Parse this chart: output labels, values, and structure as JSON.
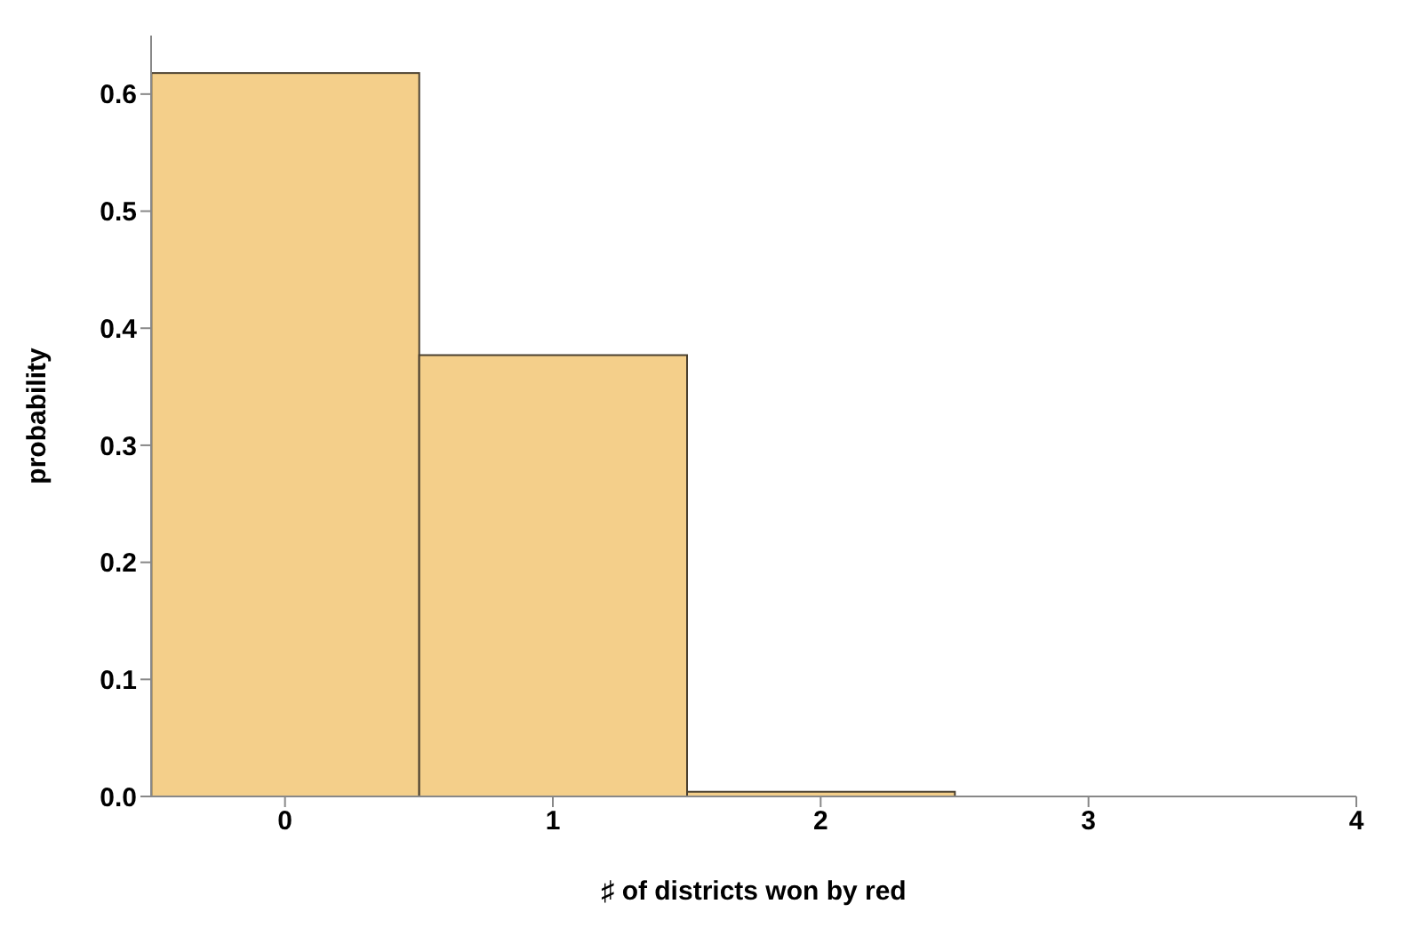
{
  "chart_data": {
    "type": "histogram",
    "xlabel": "♯ of districts won by red",
    "ylabel": "probability",
    "bins": [
      -0.5,
      0.5,
      1.5,
      2.5
    ],
    "values": [
      0.618,
      0.377,
      0.004
    ],
    "color": "#f4cf8a",
    "xlim": [
      -0.5,
      4
    ],
    "xticks": [
      0,
      1,
      2,
      3,
      4
    ],
    "ylim": [
      0,
      0.65
    ],
    "yticks": [
      {
        "value": 0,
        "label": "0.0"
      },
      0.1,
      0.2,
      0.3,
      0.4,
      0.5,
      0.6
    ],
    "grid": false,
    "legend": false
  }
}
